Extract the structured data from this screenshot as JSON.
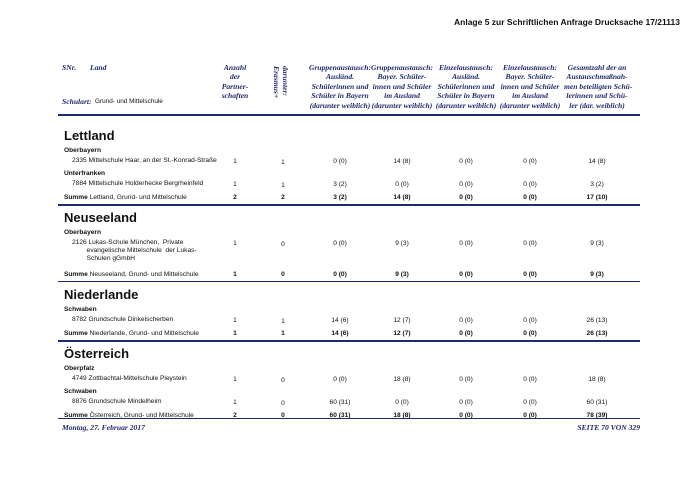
{
  "top_note": "Anlage 5 zur Schriftlichen Anfrage Drucksache 17/21113",
  "header": {
    "snr": "SNr.",
    "land": "Land",
    "schulart_label": "Schulart:",
    "schulart_value": "Grund- und Mittelschule",
    "columns": [
      "Anzahl\nder\nPartner-\nschaften",
      "darunter:\nErasmus+",
      "Gruppenaustausch:\nAusländ.\nSchülerinnen und\nSchüler in Bayern\n(darunter weiblich)",
      "Gruppenaustausch:\nBayer. Schüler-\ninnen und Schüler\nim Ausland\n(darunter weiblich)",
      "Einzelaustausch:\nAusländ.\nSchülerinnen und\nSchüler in Bayern\n(darunter weiblich)",
      "Einzelaustausch:\nBayer. Schüler-\ninnen und Schüler\nim Ausland\n(darunter weiblich)",
      "Gesamtzahl der an\nAustauschmaßnah-\nmen beteiligten Schü-\nlerinnen und Schü-\nler (dar. weiblich)"
    ]
  },
  "sections": [
    {
      "country": "Lettland",
      "groups": [
        {
          "region": "Oberbayern",
          "schools": [
            {
              "name": "2335 Mittelschule Haar, an der St.-Konrad-Straße",
              "values": [
                "1",
                "1",
                "0 (0)",
                "14 (8)",
                "0 (0)",
                "0 (0)",
                "14 (8)"
              ]
            }
          ]
        },
        {
          "region": "Unterfranken",
          "schools": [
            {
              "name": "7884 Mittelschule Holderhecke Bergrheinfeld",
              "values": [
                "1",
                "1",
                "3 (2)",
                "0 (0)",
                "0 (0)",
                "0 (0)",
                "3 (2)"
              ]
            }
          ]
        }
      ],
      "sum_label": "Summe",
      "sum_text": "Lettland, Grund- und Mittelschule",
      "sum_values": [
        "2",
        "2",
        "3 (2)",
        "14 (8)",
        "0 (0)",
        "0 (0)",
        "17 (10)"
      ]
    },
    {
      "country": "Neuseeland",
      "groups": [
        {
          "region": "Oberbayern",
          "schools": [
            {
              "name": "2126 Lukas-Schule München,  Private\n        evangelische Mittelschule  der Lukas-\n        Schulen gGmbH",
              "values": [
                "1",
                "0",
                "0 (0)",
                "9 (3)",
                "0 (0)",
                "0 (0)",
                "9 (3)"
              ]
            }
          ]
        }
      ],
      "sum_label": "Summe",
      "sum_text": "Neuseeland, Grund- und Mittelschule",
      "sum_values": [
        "1",
        "0",
        "0 (0)",
        "9 (3)",
        "0 (0)",
        "0 (0)",
        "9 (3)"
      ]
    },
    {
      "country": "Niederlande",
      "groups": [
        {
          "region": "Schwaben",
          "schools": [
            {
              "name": "8782 Grundschule Dinkelscherben",
              "values": [
                "1",
                "1",
                "14 (6)",
                "12 (7)",
                "0 (0)",
                "0 (0)",
                "26 (13)"
              ]
            }
          ]
        }
      ],
      "sum_label": "Summe",
      "sum_text": "Niederlande, Grund- und Mittelschule",
      "sum_values": [
        "1",
        "1",
        "14 (6)",
        "12 (7)",
        "0 (0)",
        "0 (0)",
        "26 (13)"
      ]
    },
    {
      "country": "Österreich",
      "groups": [
        {
          "region": "Oberpfalz",
          "schools": [
            {
              "name": "4749 Zottbachtal-Mittelschule Pleystein",
              "values": [
                "1",
                "0",
                "0 (0)",
                "18 (8)",
                "0 (0)",
                "0 (0)",
                "18 (8)"
              ]
            }
          ]
        },
        {
          "region": "Schwaben",
          "schools": [
            {
              "name": "8876 Grundschule Mindelheim",
              "values": [
                "1",
                "0",
                "60 (31)",
                "0 (0)",
                "0 (0)",
                "0 (0)",
                "60 (31)"
              ]
            }
          ]
        }
      ],
      "sum_label": "Summe",
      "sum_text": "Österreich, Grund- und Mittelschule",
      "sum_values": [
        "2",
        "0",
        "60 (31)",
        "18 (8)",
        "0 (0)",
        "0 (0)",
        "78 (39)"
      ]
    }
  ],
  "footer": {
    "date": "Montag, 27. Februar 2017",
    "page": "SEITE 70 VON 329"
  }
}
